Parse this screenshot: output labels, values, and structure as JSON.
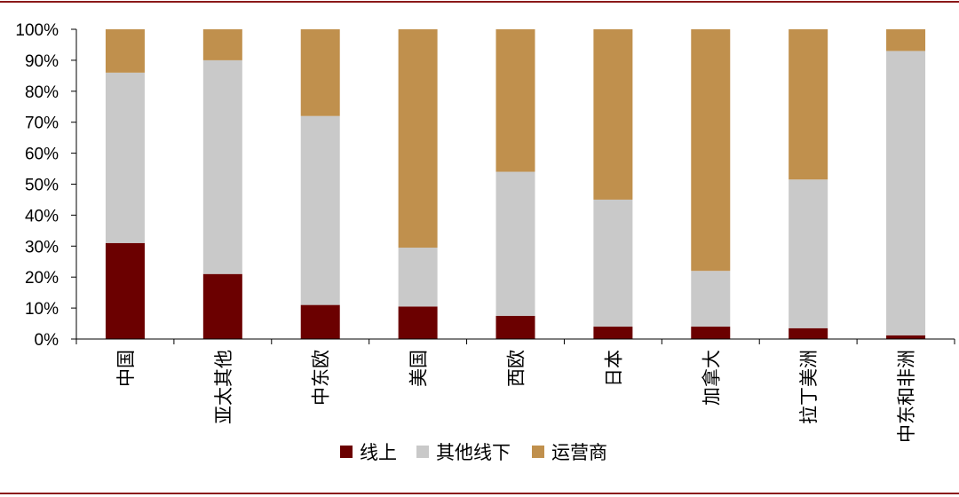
{
  "chart_data": {
    "type": "bar",
    "stacked": true,
    "categories": [
      "中国",
      "亚太其他",
      "中东欧",
      "美国",
      "西欧",
      "日本",
      "加拿大",
      "拉丁美洲",
      "中东和非洲"
    ],
    "series": [
      {
        "name": "线上",
        "color": "#6b0000",
        "values": [
          31,
          21,
          11,
          10.5,
          7.5,
          4,
          4,
          3.5,
          1.2
        ]
      },
      {
        "name": "其他线下",
        "color": "#c9c9c9",
        "values": [
          55,
          69,
          61,
          19,
          46.5,
          41,
          18,
          48,
          91.8
        ]
      },
      {
        "name": "运营商",
        "color": "#c0904d",
        "values": [
          14,
          10,
          28,
          70.5,
          46,
          55,
          78,
          48.5,
          7
        ]
      }
    ],
    "yticks": [
      "0%",
      "10%",
      "20%",
      "30%",
      "40%",
      "50%",
      "60%",
      "70%",
      "80%",
      "90%",
      "100%"
    ],
    "ylim": [
      0,
      100
    ],
    "legend_position": "bottom"
  }
}
